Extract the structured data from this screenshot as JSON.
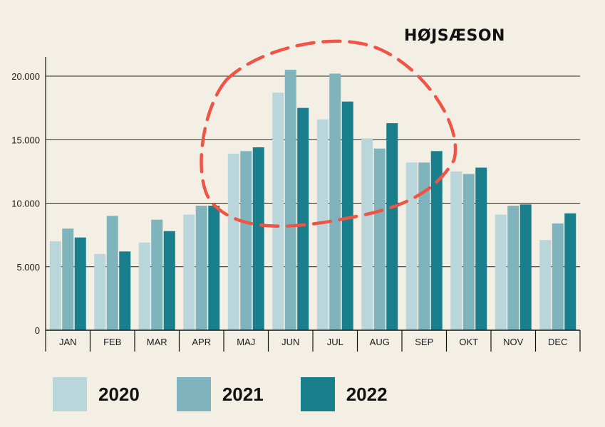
{
  "chart_data": {
    "type": "bar",
    "categories": [
      "JAN",
      "FEB",
      "MAR",
      "APR",
      "MAJ",
      "JUN",
      "JUL",
      "AUG",
      "SEP",
      "OKT",
      "NOV",
      "DEC"
    ],
    "series": [
      {
        "name": "2020",
        "color": "#b9d6db",
        "values": [
          7000,
          6000,
          6900,
          9100,
          13900,
          18700,
          16600,
          15100,
          13200,
          12500,
          9100,
          7100
        ]
      },
      {
        "name": "2021",
        "color": "#80b4bd",
        "values": [
          8000,
          9000,
          8700,
          9800,
          14100,
          20500,
          20200,
          14300,
          13200,
          12300,
          9800,
          8400
        ]
      },
      {
        "name": "2022",
        "color": "#1a7f8c",
        "values": [
          7300,
          6200,
          7800,
          9800,
          14400,
          17500,
          18000,
          16300,
          14100,
          12800,
          9900,
          9200
        ]
      }
    ],
    "yticks": [
      "0",
      "5.000",
      "10.000",
      "15.000",
      "20.000"
    ],
    "ytick_values": [
      0,
      5000,
      10000,
      15000,
      20000
    ],
    "ylim": [
      0,
      22000
    ],
    "grid": true,
    "legend_position": "bottom",
    "annotation": {
      "text": "HØJSÆSON",
      "shape": "dashed-ellipse",
      "color": "#f05445",
      "categories": [
        "APR",
        "SEP"
      ]
    }
  }
}
